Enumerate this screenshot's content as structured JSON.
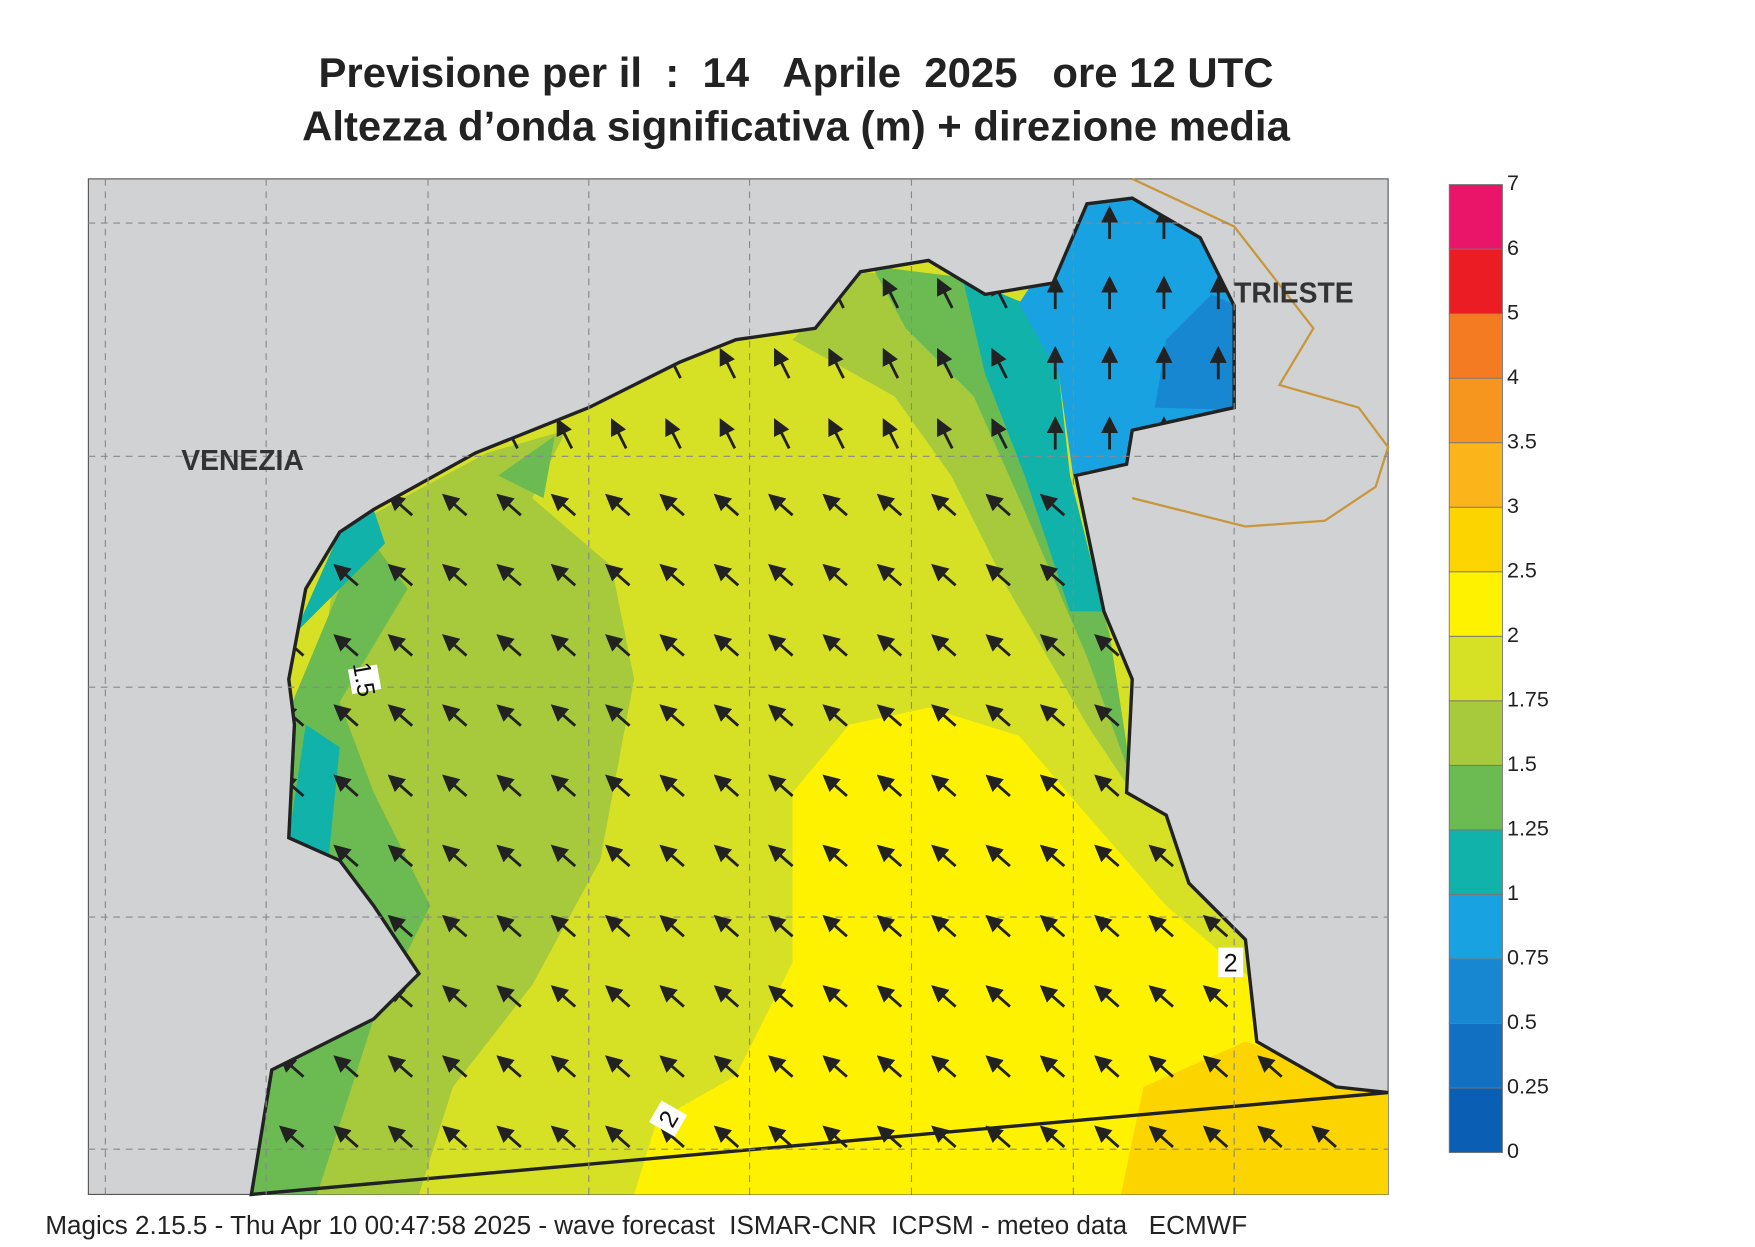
{
  "header": {
    "title": "Previsione per il  :  14   Aprile  2025   ore 12 UTC",
    "subtitle": "Altezza d’onda significativa (m) + direzione media"
  },
  "map": {
    "labels": [
      "VENEZIA",
      "TRIESTE"
    ],
    "contour_labels": [
      "1.5",
      "2",
      "2"
    ]
  },
  "colorbar": {
    "levels": [
      0,
      0.25,
      0.5,
      0.75,
      1,
      1.25,
      1.5,
      1.75,
      2,
      2.5,
      3,
      3.5,
      4,
      5,
      6,
      7
    ],
    "colors": [
      "#0a5fb4",
      "#1270c2",
      "#1787d2",
      "#19a2e2",
      "#10b2aa",
      "#6bbb52",
      "#a7c93c",
      "#d6e025",
      "#fff200",
      "#fcd500",
      "#fbb51b",
      "#f7961e",
      "#f47b21",
      "#ec1c24",
      "#ea1468"
    ]
  },
  "footer": "Magics 2.15.5 - Thu Apr 10 00:47:58 2025 - wave forecast  ISMAR-CNR  ICPSM - meteo data   ECMWF"
}
